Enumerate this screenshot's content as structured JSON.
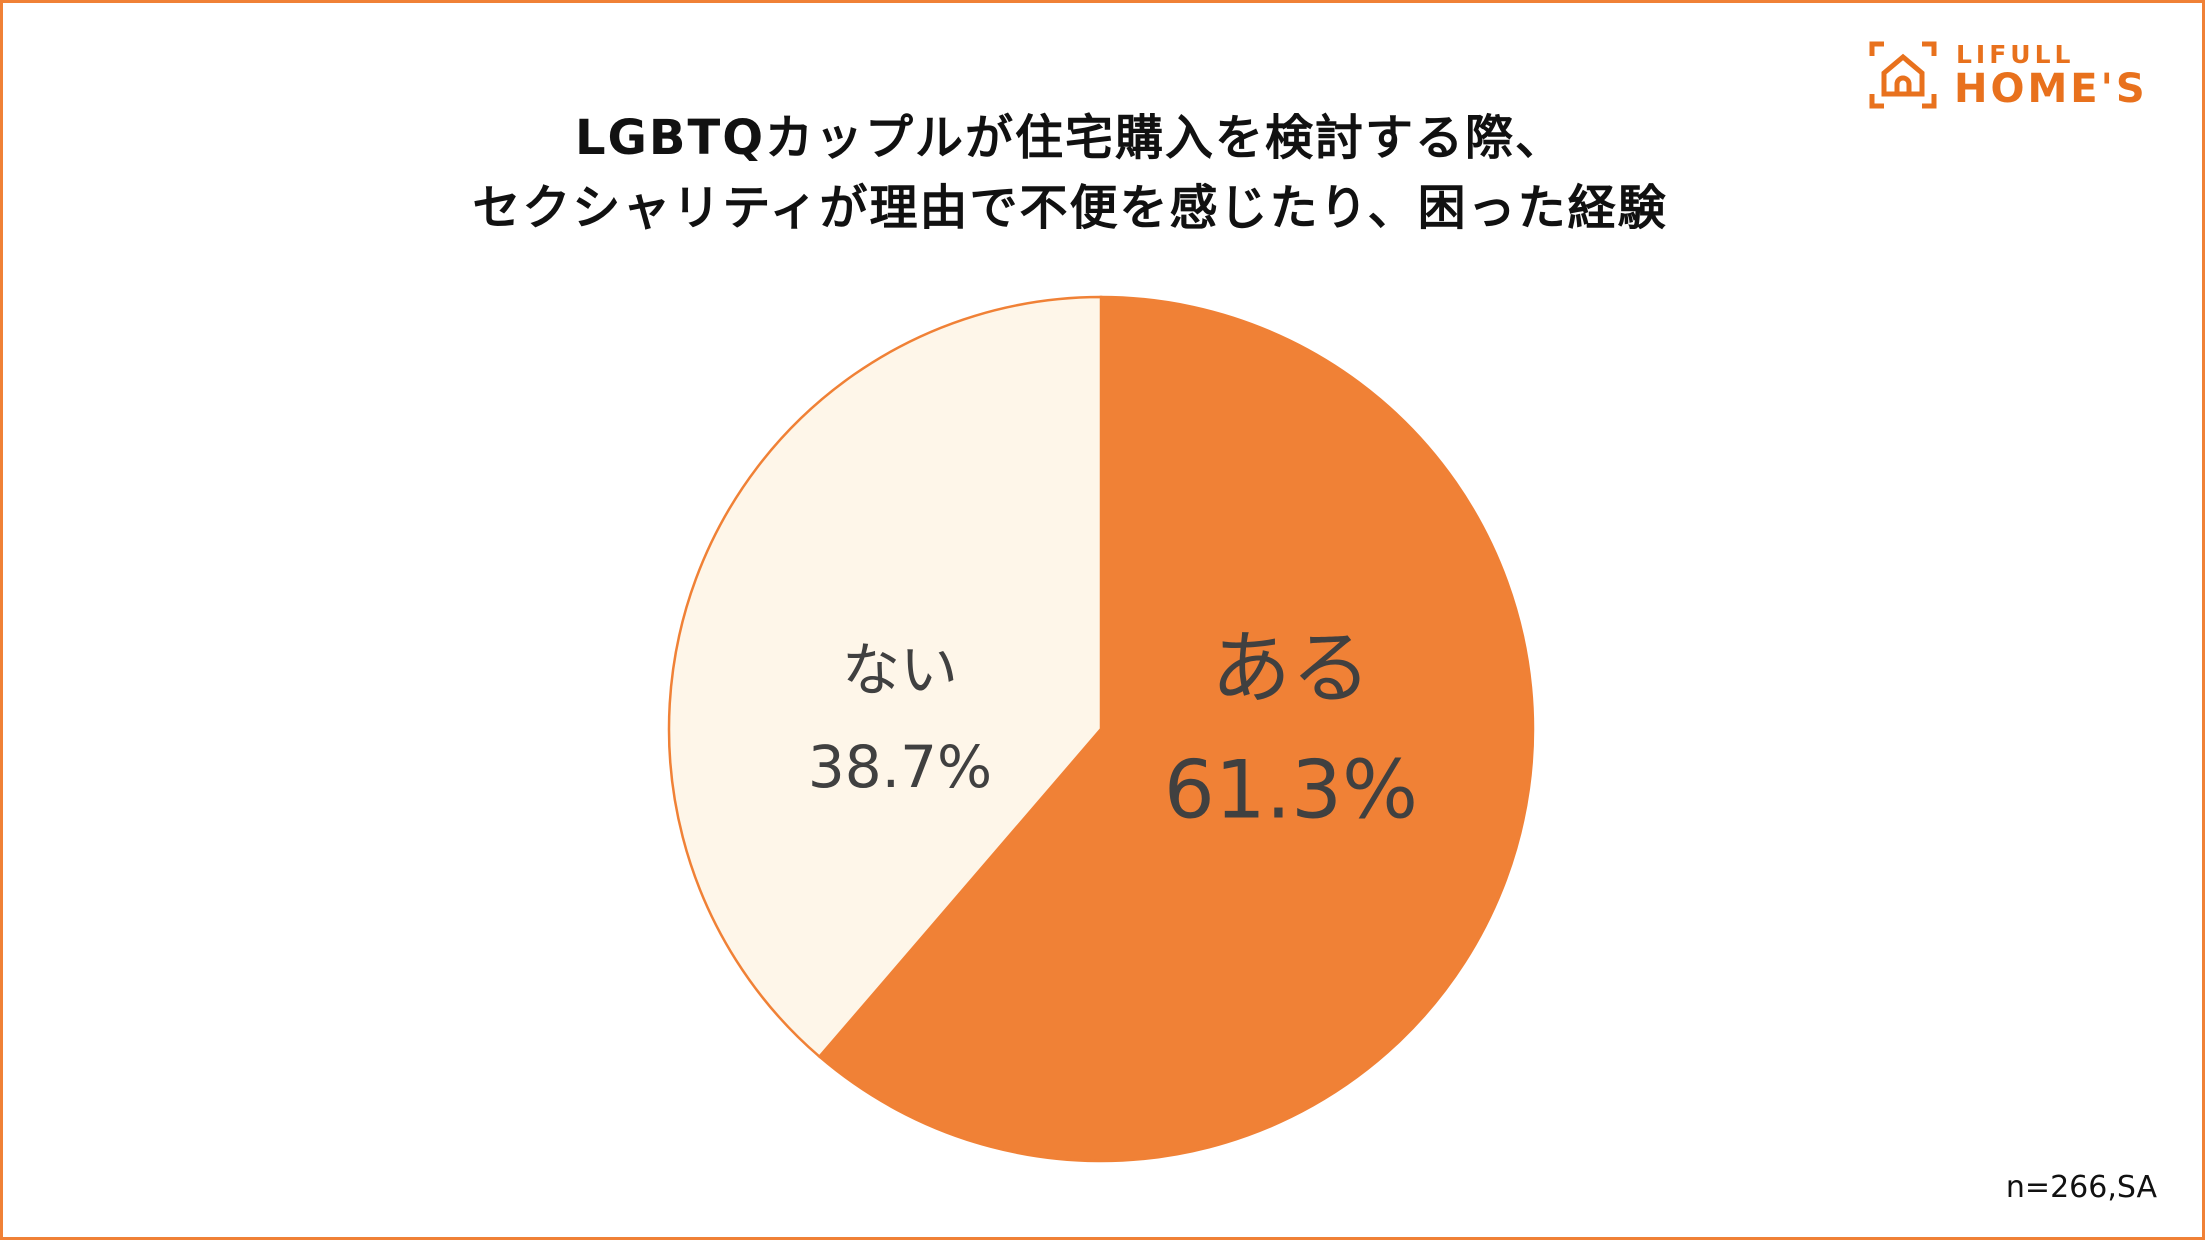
{
  "title_lines": [
    "LGBTQカップルが住宅購入を検討する際、",
    "セクシャリティが理由で不便を感じたり、困った経験"
  ],
  "logo": {
    "line1": "LIFULL",
    "line2": "HOME'S"
  },
  "note": "n=266,SA",
  "colors": {
    "accent": "#f08136",
    "light": "#fef6e9",
    "border": "#f08136",
    "label": "#404040"
  },
  "chart_data": {
    "type": "pie",
    "title": "LGBTQカップルが住宅購入を検討する際、セクシャリティが理由で不便を感じたり、困った経験",
    "slices": [
      {
        "label": "ある",
        "value": 61.3,
        "display": "61.3%",
        "color": "#f08136"
      },
      {
        "label": "ない",
        "value": 38.7,
        "display": "38.7%",
        "color": "#fef6e9"
      }
    ],
    "start_angle": "12 o'clock",
    "direction": "clockwise",
    "legend": "none"
  }
}
